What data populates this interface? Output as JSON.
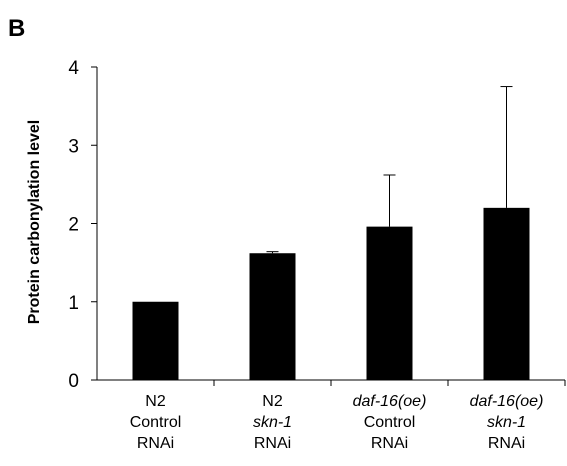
{
  "panel_label": "B",
  "chart_data": {
    "type": "bar",
    "title": "",
    "xlabel": "",
    "ylabel": "Protein carbonylation level",
    "ylim": [
      0,
      4
    ],
    "yticks": [
      "0",
      "1",
      "2",
      "3",
      "4"
    ],
    "grid": false,
    "legend": "none",
    "bar_color": "#000000",
    "categories": [
      {
        "lines": [
          {
            "text": "N2",
            "italic": false
          },
          {
            "text": "Control",
            "italic": false
          },
          {
            "text": "RNAi",
            "italic": false
          }
        ]
      },
      {
        "lines": [
          {
            "text": "N2",
            "italic": false
          },
          {
            "text": "skn-1",
            "italic": true
          },
          {
            "text": "RNAi",
            "italic": false
          }
        ]
      },
      {
        "lines": [
          {
            "text": "daf-16(oe)",
            "italic": true
          },
          {
            "text": "Control",
            "italic": false
          },
          {
            "text": "RNAi",
            "italic": false
          }
        ]
      },
      {
        "lines": [
          {
            "text": "daf-16(oe)",
            "italic": true
          },
          {
            "text": "skn-1",
            "italic": true
          },
          {
            "text": "RNAi",
            "italic": false
          }
        ]
      }
    ],
    "values": [
      1.0,
      1.62,
      1.96,
      2.2
    ],
    "error_upper": [
      0.0,
      0.02,
      0.66,
      1.55
    ]
  }
}
